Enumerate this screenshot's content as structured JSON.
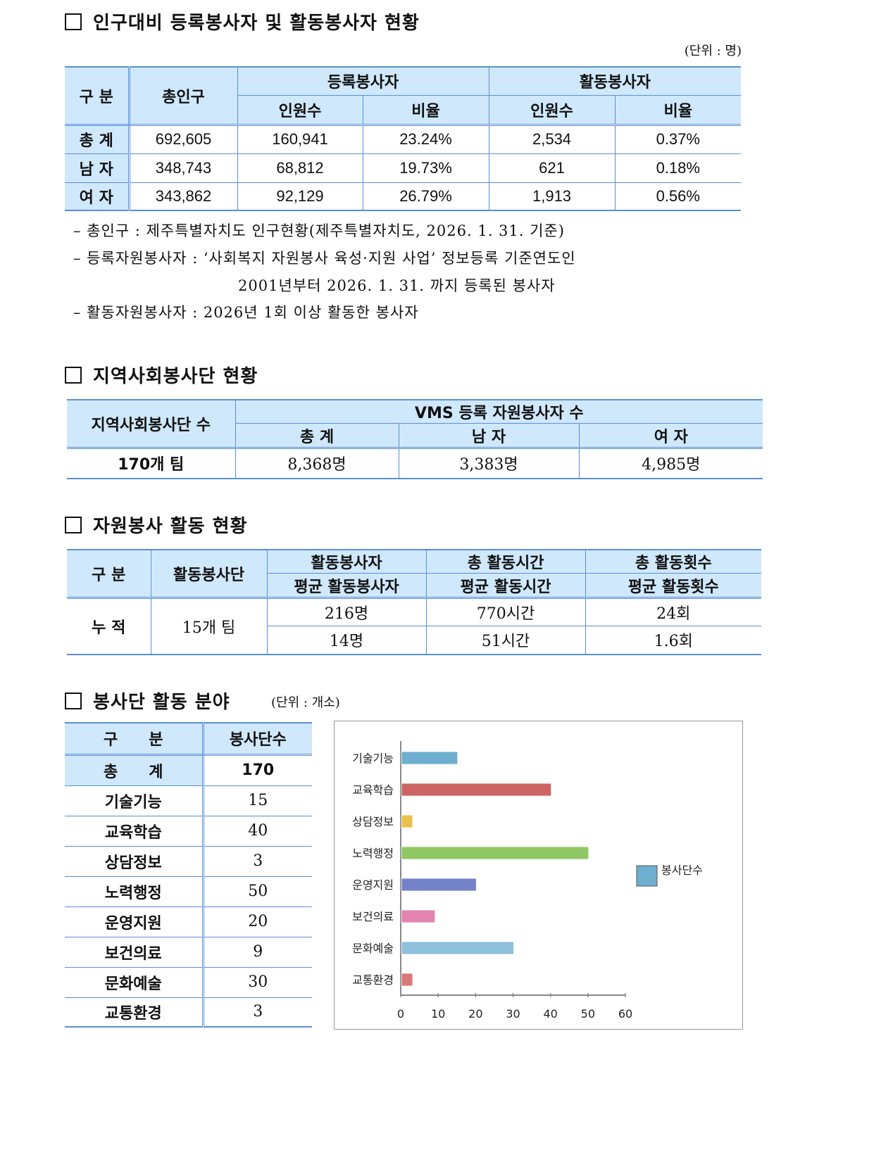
{
  "section1": {
    "title": "인구대비 등록봉사자 및 활동봉사자 현황",
    "unit": "(단위 : 명)",
    "headers": {
      "category": "구 분",
      "total_pop": "총인구",
      "registered": "등록봉사자",
      "active": "활동봉사자",
      "count": "인원수",
      "ratio": "비율"
    },
    "rows": [
      {
        "label": "총 계",
        "total_pop": "692,605",
        "reg_count": "160,941",
        "reg_ratio": "23.24%",
        "act_count": "2,534",
        "act_ratio": "0.37%"
      },
      {
        "label": "남 자",
        "total_pop": "348,743",
        "reg_count": "68,812",
        "reg_ratio": "19.73%",
        "act_count": "621",
        "act_ratio": "0.18%"
      },
      {
        "label": "여 자",
        "total_pop": "343,862",
        "reg_count": "92,129",
        "reg_ratio": "26.79%",
        "act_count": "1,913",
        "act_ratio": "0.56%"
      }
    ],
    "notes": [
      "– 총인구 : 제주특별자치도 인구현황(제주특별자치도, 2026. 1. 31. 기준)",
      "– 등록자원봉사자 : ‘사회복지 자원봉사 육성·지원 사업’ 정보등록 기준연도인",
      "2001년부터 2026. 1. 31. 까지 등록된 봉사자",
      "– 활동자원봉사자 : 2026년 1회 이상 활동한 봉사자"
    ]
  },
  "section2": {
    "title": "지역사회봉사단 현황",
    "headers": {
      "teams": "지역사회봉사단 수",
      "vms": "VMS 등록 자원봉사자 수",
      "total": "총 계",
      "male": "남 자",
      "female": "여 자"
    },
    "row": {
      "teams": "170개 팀",
      "total": "8,368명",
      "male": "3,383명",
      "female": "4,985명"
    }
  },
  "section3": {
    "title": "자원봉사 활동 현황",
    "headers": {
      "category": "구 분",
      "groups": "활동봉사단",
      "volunteers": "활동봉사자",
      "avg_volunteers": "평균 활동봉사자",
      "hours": "총 활동시간",
      "avg_hours": "평균 활동시간",
      "count": "총 활동횟수",
      "avg_count": "평균 활동횟수"
    },
    "row": {
      "label": "누 적",
      "groups": "15개 팀",
      "volunteers": "216명",
      "avg_volunteers": "14명",
      "hours": "770시간",
      "avg_hours": "51시간",
      "count": "24회",
      "avg_count": "1.6회"
    }
  },
  "section4": {
    "title": "봉사단 활동 분야",
    "unit": "(단위 : 개소)",
    "headers": {
      "category": "구　　분",
      "count": "봉사단수"
    },
    "total": {
      "label": "총　　계",
      "value": "170"
    },
    "rows": [
      {
        "label": "기술기능",
        "value": "15"
      },
      {
        "label": "교육학습",
        "value": "40"
      },
      {
        "label": "상담정보",
        "value": "3"
      },
      {
        "label": "노력행정",
        "value": "50"
      },
      {
        "label": "운영지원",
        "value": "20"
      },
      {
        "label": "보건의료",
        "value": "9"
      },
      {
        "label": "문화예술",
        "value": "30"
      },
      {
        "label": "교통환경",
        "value": "3"
      }
    ]
  },
  "chart_data": {
    "type": "bar",
    "orientation": "horizontal",
    "categories": [
      "기술기능",
      "교육학습",
      "상담정보",
      "노력행정",
      "운영지원",
      "보건의료",
      "문화예술",
      "교통환경"
    ],
    "series": [
      {
        "name": "봉사단수",
        "values": [
          15,
          40,
          3,
          50,
          20,
          9,
          30,
          3
        ]
      }
    ],
    "bar_colors": [
      "#6eafd0",
      "#cd6464",
      "#e9c14c",
      "#8fc865",
      "#7482c8",
      "#e384b0",
      "#8fc0dc",
      "#d97878"
    ],
    "legend_color": "#6eafd0",
    "xlim": [
      0,
      60
    ],
    "xticks": [
      "0",
      "10",
      "20",
      "30",
      "40",
      "50",
      "60"
    ],
    "grid": false,
    "legend": "right"
  }
}
